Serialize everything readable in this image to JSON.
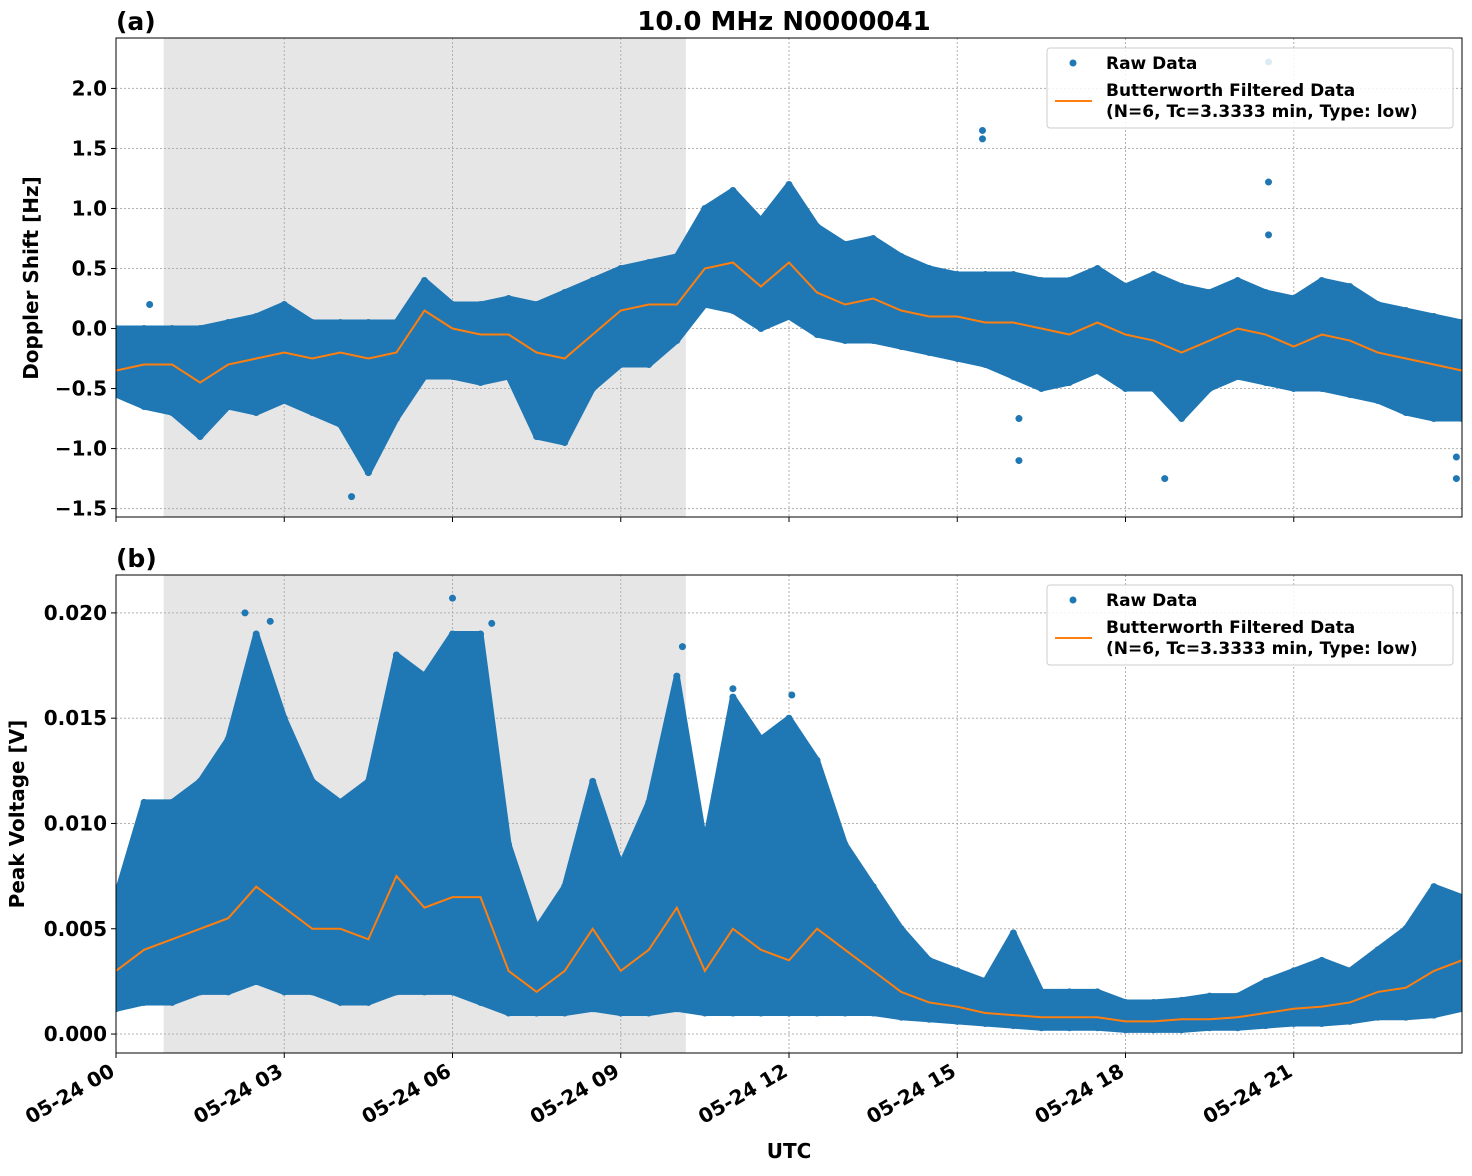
{
  "title": "10.0 MHz N0000041",
  "colors": {
    "raw": "#1f77b4",
    "filtered": "#ff7f0e",
    "shade": "#e6e6e6",
    "grid": "#b0b0b0"
  },
  "xlabel": "UTC",
  "x_tick_labels": [
    "05-24 00",
    "05-24 03",
    "05-24 06",
    "05-24 09",
    "05-24 12",
    "05-24 15",
    "05-24 18",
    "05-24 21"
  ],
  "legend": {
    "raw": "Raw Data",
    "filtered_line1": "Butterworth Filtered Data",
    "filtered_line2": "(N=6, Tc=3.3333 min, Type: low)"
  },
  "chart_data": [
    {
      "type": "scatter",
      "panel_label": "(a)",
      "ylabel": "Doppler Shift [Hz]",
      "x_unit": "hours UTC on 05-24",
      "xlim": [
        0,
        24
      ],
      "ylim": [
        -1.57,
        2.42
      ],
      "y_ticks": [
        -1.5,
        -1.0,
        -0.5,
        0.0,
        0.5,
        1.0,
        1.5,
        2.0
      ],
      "y_tick_labels": [
        "−1.5",
        "−1.0",
        "−0.5",
        "0.0",
        "0.5",
        "1.0",
        "1.5",
        "2.0"
      ],
      "grid": true,
      "legend_position": "top-right",
      "shaded_span": [
        0.85,
        10.16
      ],
      "x": [
        0,
        0.5,
        1,
        1.5,
        2,
        2.5,
        3,
        3.5,
        4,
        4.5,
        5,
        5.5,
        6,
        6.5,
        7,
        7.5,
        8,
        8.5,
        9,
        9.5,
        10,
        10.5,
        11,
        11.5,
        12,
        12.5,
        13,
        13.5,
        14,
        14.5,
        15,
        15.5,
        16,
        16.5,
        17,
        17.5,
        18,
        18.5,
        19,
        19.5,
        20,
        20.5,
        21,
        21.5,
        22,
        22.5,
        23,
        23.5,
        24
      ],
      "series": [
        {
          "name": "Butterworth Filtered Data",
          "kind": "line",
          "values": [
            -0.35,
            -0.3,
            -0.3,
            -0.45,
            -0.3,
            -0.25,
            -0.2,
            -0.25,
            -0.2,
            -0.25,
            -0.2,
            0.15,
            0.0,
            -0.05,
            -0.05,
            -0.2,
            -0.25,
            -0.05,
            0.15,
            0.2,
            0.2,
            0.5,
            0.55,
            0.35,
            0.55,
            0.3,
            0.2,
            0.25,
            0.15,
            0.1,
            0.1,
            0.05,
            0.05,
            0.0,
            -0.05,
            0.05,
            -0.05,
            -0.1,
            -0.2,
            -0.1,
            0.0,
            -0.05,
            -0.15,
            -0.05,
            -0.1,
            -0.2,
            -0.25,
            -0.3,
            -0.35
          ]
        },
        {
          "name": "Raw Data",
          "kind": "scatter-envelope",
          "low": [
            -0.55,
            -0.65,
            -0.7,
            -0.9,
            -0.65,
            -0.7,
            -0.6,
            -0.7,
            -0.8,
            -1.2,
            -0.75,
            -0.4,
            -0.4,
            -0.45,
            -0.4,
            -0.9,
            -0.95,
            -0.5,
            -0.3,
            -0.3,
            -0.1,
            0.2,
            0.15,
            0.0,
            0.1,
            -0.05,
            -0.1,
            -0.1,
            -0.15,
            -0.2,
            -0.25,
            -0.3,
            -0.4,
            -0.5,
            -0.45,
            -0.35,
            -0.5,
            -0.5,
            -0.75,
            -0.5,
            -0.4,
            -0.45,
            -0.5,
            -0.5,
            -0.55,
            -0.6,
            -0.7,
            -0.75,
            -0.75
          ],
          "high": [
            0.0,
            0.0,
            0.0,
            0.0,
            0.05,
            0.1,
            0.2,
            0.05,
            0.05,
            0.05,
            0.05,
            0.4,
            0.2,
            0.2,
            0.25,
            0.2,
            0.3,
            0.4,
            0.5,
            0.55,
            0.6,
            1.0,
            1.15,
            0.9,
            1.2,
            0.85,
            0.7,
            0.75,
            0.6,
            0.5,
            0.45,
            0.45,
            0.45,
            0.4,
            0.4,
            0.5,
            0.35,
            0.45,
            0.35,
            0.3,
            0.4,
            0.3,
            0.25,
            0.4,
            0.35,
            0.2,
            0.15,
            0.1,
            0.05
          ],
          "outliers": [
            [
              0.6,
              0.2
            ],
            [
              4.2,
              -1.4
            ],
            [
              4.5,
              -1.2
            ],
            [
              15.45,
              1.65
            ],
            [
              15.45,
              1.58
            ],
            [
              16.1,
              -1.1
            ],
            [
              16.1,
              -0.75
            ],
            [
              18.7,
              -1.25
            ],
            [
              20.55,
              2.22
            ],
            [
              20.55,
              1.22
            ],
            [
              20.55,
              0.78
            ],
            [
              23.9,
              -1.25
            ],
            [
              23.9,
              -1.07
            ]
          ]
        }
      ]
    },
    {
      "type": "scatter",
      "panel_label": "(b)",
      "ylabel": "Peak Voltage [V]",
      "x_unit": "hours UTC on 05-24",
      "xlim": [
        0,
        24
      ],
      "ylim": [
        -0.0009,
        0.0218
      ],
      "y_ticks": [
        0,
        0.005,
        0.01,
        0.015,
        0.02
      ],
      "y_tick_labels": [
        "0.000",
        "0.005",
        "0.010",
        "0.015",
        "0.020"
      ],
      "grid": true,
      "legend_position": "top-right",
      "shaded_span": [
        0.85,
        10.16
      ],
      "x": [
        0,
        0.5,
        1,
        1.5,
        2,
        2.5,
        3,
        3.5,
        4,
        4.5,
        5,
        5.5,
        6,
        6.5,
        7,
        7.5,
        8,
        8.5,
        9,
        9.5,
        10,
        10.5,
        11,
        11.5,
        12,
        12.5,
        13,
        13.5,
        14,
        14.5,
        15,
        15.5,
        16,
        16.5,
        17,
        17.5,
        18,
        18.5,
        19,
        19.5,
        20,
        20.5,
        21,
        21.5,
        22,
        22.5,
        23,
        23.5,
        24
      ],
      "series": [
        {
          "name": "Butterworth Filtered Data",
          "kind": "line",
          "values": [
            0.003,
            0.004,
            0.0045,
            0.005,
            0.0055,
            0.007,
            0.006,
            0.005,
            0.005,
            0.0045,
            0.0075,
            0.006,
            0.0065,
            0.0065,
            0.003,
            0.002,
            0.003,
            0.005,
            0.003,
            0.004,
            0.006,
            0.003,
            0.005,
            0.004,
            0.0035,
            0.005,
            0.004,
            0.003,
            0.002,
            0.0015,
            0.0013,
            0.001,
            0.0009,
            0.0008,
            0.0008,
            0.0008,
            0.0006,
            0.0006,
            0.0007,
            0.0007,
            0.0008,
            0.001,
            0.0012,
            0.0013,
            0.0015,
            0.002,
            0.0022,
            0.003,
            0.0035
          ]
        },
        {
          "name": "Raw Data",
          "kind": "scatter-envelope",
          "low": [
            0.0012,
            0.0015,
            0.0015,
            0.002,
            0.002,
            0.0025,
            0.002,
            0.002,
            0.0015,
            0.0015,
            0.002,
            0.002,
            0.002,
            0.0015,
            0.001,
            0.001,
            0.001,
            0.0012,
            0.001,
            0.001,
            0.0012,
            0.001,
            0.001,
            0.001,
            0.001,
            0.001,
            0.001,
            0.001,
            0.0008,
            0.0007,
            0.0006,
            0.0005,
            0.0004,
            0.0003,
            0.0003,
            0.0003,
            0.0002,
            0.0002,
            0.0002,
            0.0003,
            0.0003,
            0.0004,
            0.0005,
            0.0005,
            0.0006,
            0.0008,
            0.0008,
            0.0009,
            0.0012
          ],
          "high": [
            0.0065,
            0.011,
            0.011,
            0.012,
            0.014,
            0.019,
            0.015,
            0.012,
            0.011,
            0.012,
            0.018,
            0.017,
            0.019,
            0.019,
            0.009,
            0.005,
            0.007,
            0.012,
            0.008,
            0.011,
            0.017,
            0.009,
            0.016,
            0.014,
            0.015,
            0.013,
            0.009,
            0.007,
            0.005,
            0.0035,
            0.003,
            0.0025,
            0.0048,
            0.002,
            0.002,
            0.002,
            0.0015,
            0.0015,
            0.0016,
            0.0018,
            0.0018,
            0.0025,
            0.003,
            0.0035,
            0.003,
            0.004,
            0.005,
            0.007,
            0.0065
          ],
          "outliers": [
            [
              2.3,
              0.02
            ],
            [
              2.75,
              0.0196
            ],
            [
              6.0,
              0.0207
            ],
            [
              6.7,
              0.0195
            ],
            [
              10.1,
              0.0184
            ],
            [
              11.0,
              0.0164
            ],
            [
              12.05,
              0.0161
            ]
          ]
        }
      ]
    }
  ]
}
